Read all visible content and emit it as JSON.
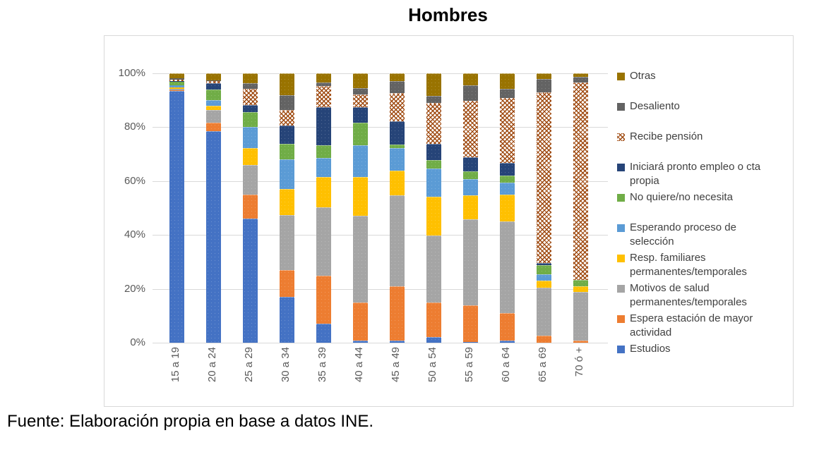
{
  "title": "Hombres",
  "footer": "Fuente: Elaboración propia en base a datos INE.",
  "y_axis": {
    "ticks": [
      "100%",
      "80%",
      "60%",
      "40%",
      "20%",
      "0%"
    ]
  },
  "chart_data": {
    "type": "bar",
    "stacked": true,
    "percent_stacked": true,
    "title": "Hombres",
    "xlabel": "",
    "ylabel": "",
    "ylim": [
      0,
      100
    ],
    "grid": true,
    "legend_position": "right",
    "categories": [
      "15 a 19",
      "20 a 24",
      "25 a 29",
      "30 a 34",
      "35 a 39",
      "40 a 44",
      "45 a 49",
      "50 a 54",
      "55 a 59",
      "60 a 64",
      "65 a 69",
      "70 ó +"
    ],
    "series": [
      {
        "name": "Estudios",
        "color": "#4472C4",
        "pattern": false,
        "values": [
          93.4,
          78.5,
          46.0,
          17.0,
          7.0,
          0.9,
          0.9,
          2.2,
          0.3,
          0.9,
          0.0,
          0.0
        ]
      },
      {
        "name": "Espera estación de mayor actividad",
        "color": "#ED7D31",
        "pattern": false,
        "values": [
          0.4,
          3.2,
          9.0,
          10.0,
          17.9,
          14.0,
          20.1,
          12.7,
          13.7,
          10.0,
          2.6,
          0.9
        ]
      },
      {
        "name": "Motivos de salud permanentes/temporales",
        "color": "#A5A5A5",
        "pattern": false,
        "values": [
          0.5,
          4.8,
          11.0,
          20.5,
          25.3,
          32.3,
          33.7,
          24.9,
          31.9,
          34.1,
          17.9,
          17.9
        ]
      },
      {
        "name": "Resp. familiares permanentes/temporales",
        "color": "#FFC000",
        "pattern": false,
        "values": [
          0.5,
          1.5,
          6.3,
          9.6,
          11.4,
          14.4,
          9.2,
          14.4,
          8.7,
          10.0,
          2.6,
          2.2
        ]
      },
      {
        "name": "Esperando proceso de selección",
        "color": "#5B9BD5",
        "pattern": false,
        "values": [
          0.7,
          2.0,
          7.7,
          10.9,
          7.0,
          11.8,
          8.3,
          10.5,
          6.1,
          4.4,
          2.2,
          0.0
        ]
      },
      {
        "name": "No quiere/no necesita",
        "color": "#70AD47",
        "pattern": false,
        "values": [
          1.5,
          4.0,
          5.6,
          5.7,
          4.8,
          8.3,
          1.3,
          3.0,
          3.0,
          2.6,
          3.5,
          2.2
        ]
      },
      {
        "name": "Iniciará pronto empleo o cta propia",
        "color": "#264478",
        "pattern": false,
        "values": [
          0.2,
          2.4,
          2.6,
          7.0,
          14.0,
          5.7,
          8.7,
          6.1,
          5.2,
          4.8,
          0.9,
          0.0
        ]
      },
      {
        "name": "Recibe pensión",
        "color": "#9E480E",
        "pattern": true,
        "values": [
          0.4,
          0.6,
          6.0,
          5.7,
          7.9,
          4.8,
          10.5,
          15.3,
          21.0,
          24.0,
          63.3,
          73.4
        ]
      },
      {
        "name": "Desaliento",
        "color": "#636363",
        "pattern": false,
        "values": [
          0.6,
          0.4,
          2.2,
          5.5,
          1.3,
          2.2,
          4.4,
          2.6,
          5.7,
          3.5,
          4.8,
          2.2
        ]
      },
      {
        "name": "Otras",
        "color": "#997300",
        "pattern": false,
        "values": [
          1.8,
          2.6,
          3.6,
          8.1,
          3.4,
          5.6,
          2.9,
          8.3,
          4.4,
          5.7,
          2.2,
          1.2
        ]
      }
    ]
  }
}
